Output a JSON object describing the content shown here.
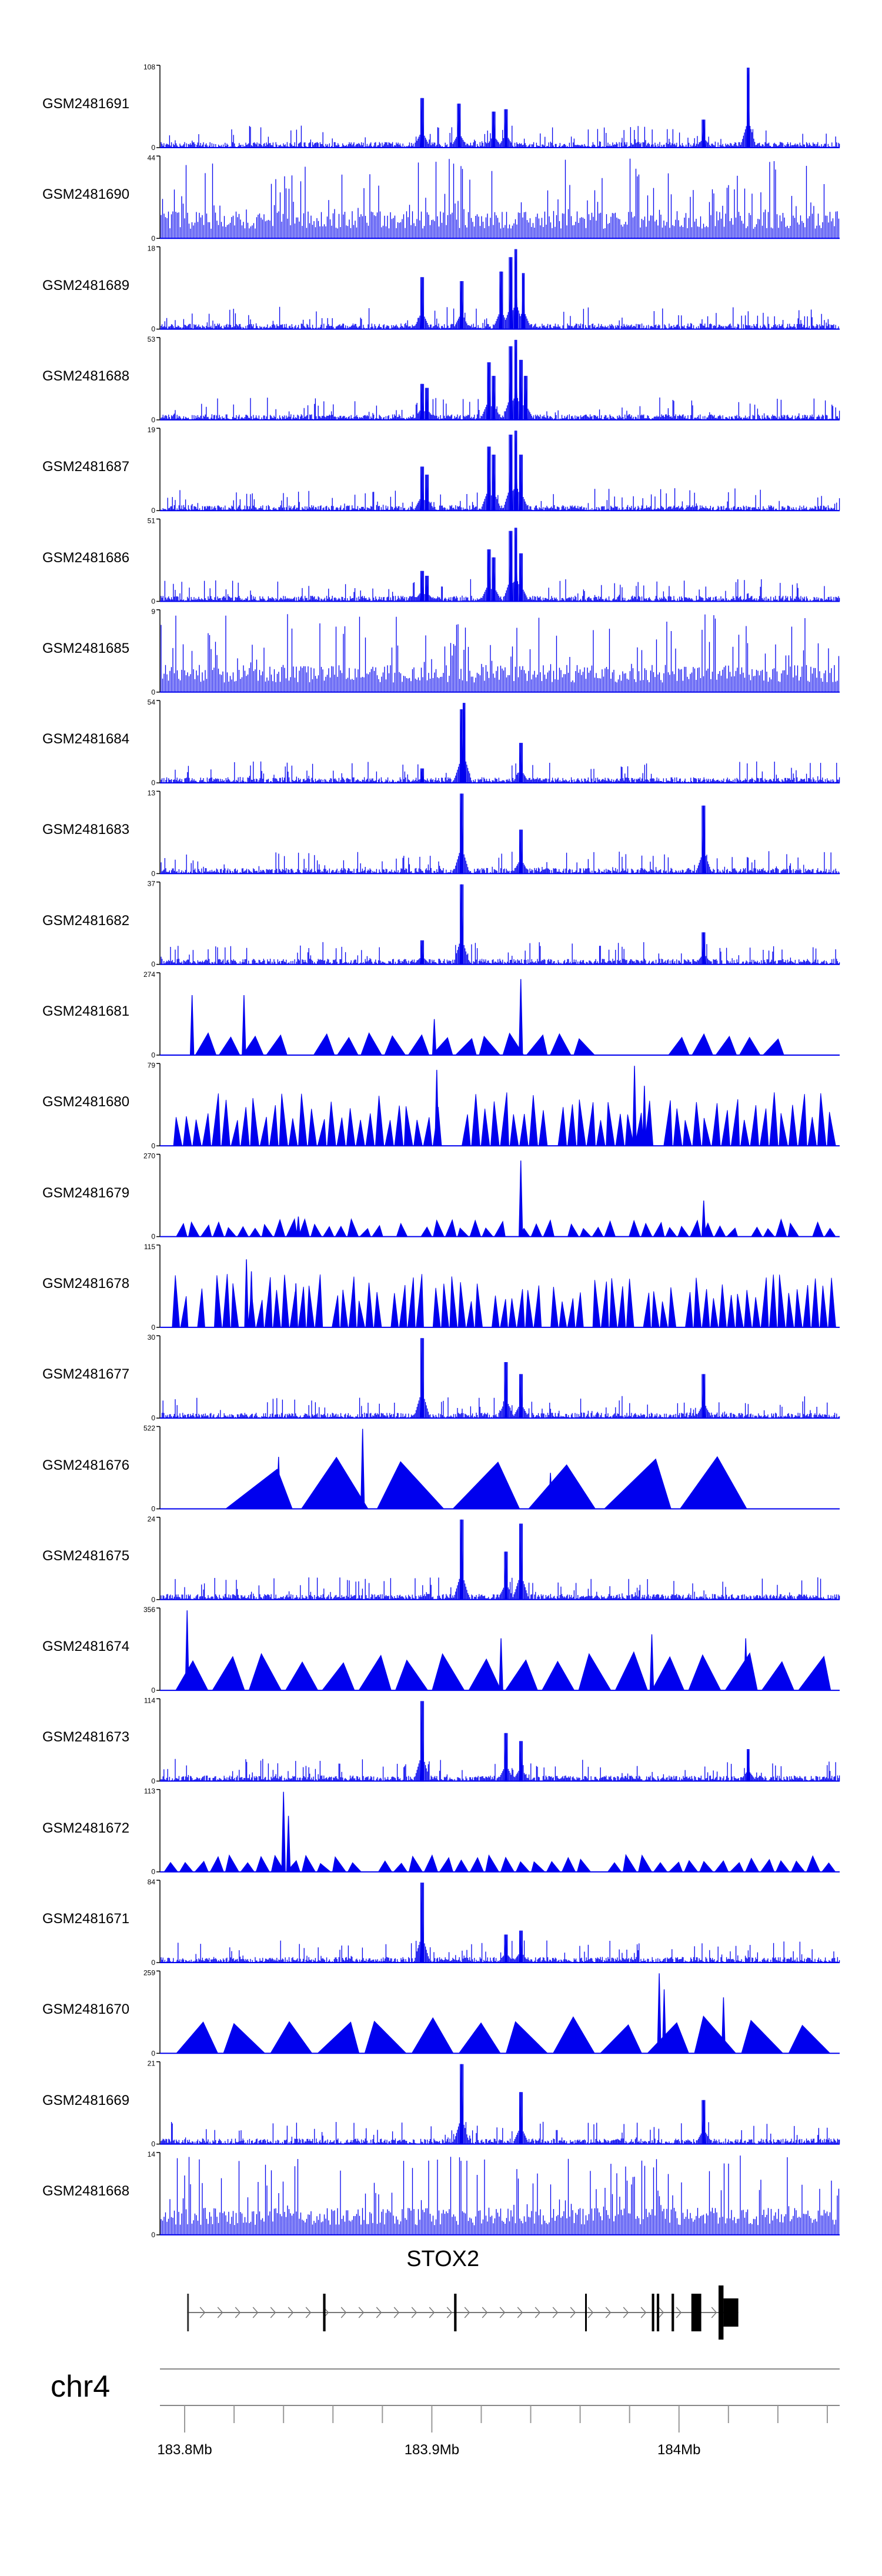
{
  "chart_data": {
    "type": "genome-browser",
    "chromosome": "chr4",
    "region_mb": [
      183.79,
      184.065
    ],
    "tracks": [
      {
        "name": "GSM2481691",
        "ymax": 108,
        "style": "dense",
        "peaks": [
          [
            183.896,
            0.62
          ],
          [
            183.911,
            0.55
          ],
          [
            183.925,
            0.45
          ],
          [
            183.93,
            0.48
          ],
          [
            184.01,
            0.35
          ],
          [
            184.028,
            1.0
          ]
        ]
      },
      {
        "name": "GSM2481690",
        "ymax": 44,
        "style": "spiky",
        "peaks": []
      },
      {
        "name": "GSM2481689",
        "ymax": 18,
        "style": "dense",
        "peaks": [
          [
            183.896,
            0.65
          ],
          [
            183.912,
            0.6
          ],
          [
            183.928,
            0.72
          ],
          [
            183.932,
            0.9
          ],
          [
            183.934,
            1.0
          ],
          [
            183.937,
            0.7
          ]
        ]
      },
      {
        "name": "GSM2481688",
        "ymax": 53,
        "style": "dense",
        "peaks": [
          [
            183.896,
            0.45
          ],
          [
            183.898,
            0.4
          ],
          [
            183.923,
            0.72
          ],
          [
            183.925,
            0.55
          ],
          [
            183.932,
            0.92
          ],
          [
            183.934,
            1.0
          ],
          [
            183.936,
            0.75
          ],
          [
            183.938,
            0.55
          ]
        ]
      },
      {
        "name": "GSM2481687",
        "ymax": 19,
        "style": "dense",
        "peaks": [
          [
            183.896,
            0.55
          ],
          [
            183.898,
            0.45
          ],
          [
            183.923,
            0.8
          ],
          [
            183.925,
            0.7
          ],
          [
            183.932,
            0.95
          ],
          [
            183.934,
            1.0
          ],
          [
            183.936,
            0.7
          ]
        ]
      },
      {
        "name": "GSM2481686",
        "ymax": 51,
        "style": "dense",
        "peaks": [
          [
            183.896,
            0.38
          ],
          [
            183.898,
            0.32
          ],
          [
            183.923,
            0.65
          ],
          [
            183.925,
            0.55
          ],
          [
            183.932,
            0.88
          ],
          [
            183.934,
            0.92
          ],
          [
            183.936,
            0.6
          ]
        ]
      },
      {
        "name": "GSM2481685",
        "ymax": 9,
        "style": "spiky",
        "peaks": []
      },
      {
        "name": "GSM2481684",
        "ymax": 54,
        "style": "dense",
        "peaks": [
          [
            183.896,
            0.18
          ],
          [
            183.912,
            0.92
          ],
          [
            183.913,
            1.0
          ],
          [
            183.936,
            0.5
          ]
        ]
      },
      {
        "name": "GSM2481683",
        "ymax": 13,
        "style": "dense",
        "peaks": [
          [
            183.912,
            1.0
          ],
          [
            183.936,
            0.55
          ],
          [
            184.01,
            0.85
          ]
        ]
      },
      {
        "name": "GSM2481682",
        "ymax": 37,
        "style": "dense",
        "peaks": [
          [
            183.896,
            0.3
          ],
          [
            183.912,
            1.0
          ],
          [
            184.01,
            0.4
          ]
        ]
      },
      {
        "name": "GSM2481681",
        "ymax": 274,
        "style": "triangle",
        "count": 25,
        "peaks": [
          [
            183.803,
            0.75
          ],
          [
            183.824,
            0.75
          ],
          [
            183.936,
            0.95
          ],
          [
            183.901,
            0.45
          ]
        ]
      },
      {
        "name": "GSM2481680",
        "ymax": 79,
        "style": "triangle",
        "count": 70,
        "peaks": [
          [
            183.902,
            0.95
          ],
          [
            183.982,
            1.0
          ],
          [
            183.986,
            0.75
          ]
        ]
      },
      {
        "name": "GSM2481679",
        "ymax": 270,
        "style": "triangle",
        "count": 55,
        "peaks": [
          [
            183.936,
            0.95
          ],
          [
            183.846,
            0.25
          ],
          [
            184.01,
            0.45
          ]
        ]
      },
      {
        "name": "GSM2481678",
        "ymax": 115,
        "style": "triangle",
        "count": 80,
        "peaks": [
          [
            183.825,
            0.85
          ],
          [
            183.827,
            0.7
          ],
          [
            183.845,
            0.55
          ]
        ]
      },
      {
        "name": "GSM2481677",
        "ymax": 30,
        "style": "dense",
        "peaks": [
          [
            183.896,
            1.0
          ],
          [
            183.93,
            0.7
          ],
          [
            183.936,
            0.55
          ],
          [
            184.01,
            0.55
          ]
        ]
      },
      {
        "name": "GSM2481676",
        "ymax": 522,
        "style": "triangle",
        "count": 7,
        "peaks": [
          [
            183.872,
            1.0
          ],
          [
            183.838,
            0.65
          ],
          [
            183.948,
            0.45
          ]
        ]
      },
      {
        "name": "GSM2481675",
        "ymax": 24,
        "style": "dense",
        "peaks": [
          [
            183.912,
            1.0
          ],
          [
            183.936,
            0.95
          ],
          [
            183.93,
            0.6
          ]
        ]
      },
      {
        "name": "GSM2481674",
        "ymax": 356,
        "style": "triangle",
        "count": 18,
        "peaks": [
          [
            183.801,
            1.0
          ],
          [
            183.928,
            0.65
          ],
          [
            183.989,
            0.7
          ],
          [
            184.027,
            0.65
          ]
        ]
      },
      {
        "name": "GSM2481673",
        "ymax": 114,
        "style": "dense",
        "peaks": [
          [
            183.896,
            1.0
          ],
          [
            183.93,
            0.6
          ],
          [
            183.936,
            0.5
          ],
          [
            184.028,
            0.4
          ]
        ]
      },
      {
        "name": "GSM2481672",
        "ymax": 113,
        "style": "triangle",
        "count": 44,
        "peaks": [
          [
            183.84,
            1.0
          ],
          [
            183.842,
            0.7
          ]
        ]
      },
      {
        "name": "GSM2481671",
        "ymax": 84,
        "style": "dense",
        "peaks": [
          [
            183.896,
            1.0
          ],
          [
            183.936,
            0.4
          ],
          [
            183.93,
            0.35
          ]
        ]
      },
      {
        "name": "GSM2481670",
        "ymax": 259,
        "style": "triangle",
        "count": 14,
        "peaks": [
          [
            183.992,
            1.0
          ],
          [
            183.994,
            0.8
          ],
          [
            184.018,
            0.7
          ]
        ]
      },
      {
        "name": "GSM2481669",
        "ymax": 21,
        "style": "dense",
        "peaks": [
          [
            183.912,
            1.0
          ],
          [
            183.936,
            0.65
          ],
          [
            184.01,
            0.55
          ]
        ]
      },
      {
        "name": "GSM2481668",
        "ymax": 14,
        "style": "spiky",
        "peaks": []
      }
    ],
    "gene": {
      "name": "STOX2",
      "start_mb": 183.801,
      "end_mb": 184.024,
      "strand": "+",
      "exons": [
        [
          183.801,
          183.8016
        ],
        [
          183.856,
          183.857
        ],
        [
          183.909,
          183.91
        ],
        [
          183.962,
          183.9625
        ],
        [
          183.989,
          183.99
        ],
        [
          183.991,
          183.992
        ],
        [
          183.997,
          183.998
        ],
        [
          184.005,
          184.009
        ],
        [
          184.016,
          184.018
        ],
        [
          184.018,
          184.024
        ]
      ]
    },
    "axis": {
      "ticks_mb": [
        183.8,
        183.9,
        184.0
      ],
      "tick_labels": [
        "183.8Mb",
        "183.9Mb",
        "184Mb"
      ],
      "minor_ticks_mb": [
        183.8,
        183.82,
        183.84,
        183.86,
        183.88,
        183.9,
        183.92,
        183.94,
        183.96,
        183.98,
        184.0,
        184.02,
        184.04,
        184.06
      ]
    }
  }
}
